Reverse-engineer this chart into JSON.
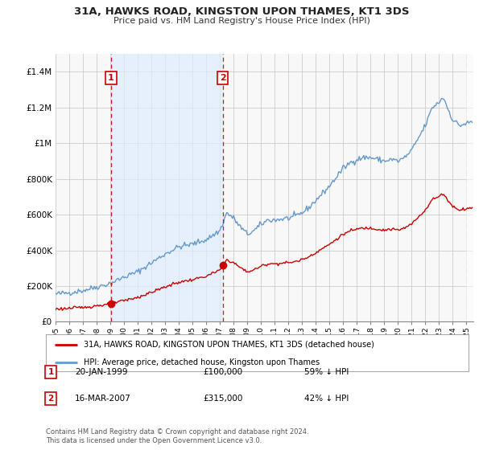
{
  "title": "31A, HAWKS ROAD, KINGSTON UPON THAMES, KT1 3DS",
  "subtitle": "Price paid vs. HM Land Registry's House Price Index (HPI)",
  "footer": "Contains HM Land Registry data © Crown copyright and database right 2024.\nThis data is licensed under the Open Government Licence v3.0.",
  "legend_label_red": "31A, HAWKS ROAD, KINGSTON UPON THAMES, KT1 3DS (detached house)",
  "legend_label_blue": "HPI: Average price, detached house, Kingston upon Thames",
  "annotation1_label": "1",
  "annotation1_date": "20-JAN-1999",
  "annotation1_price": "£100,000",
  "annotation1_hpi": "59% ↓ HPI",
  "annotation2_label": "2",
  "annotation2_date": "16-MAR-2007",
  "annotation2_price": "£315,000",
  "annotation2_hpi": "42% ↓ HPI",
  "sale1_x": 1999.05,
  "sale1_y": 100000,
  "sale2_x": 2007.21,
  "sale2_y": 315000,
  "vline1_x": 1999.05,
  "vline2_x": 2007.21,
  "xlim": [
    1995.0,
    2025.5
  ],
  "ylim": [
    0,
    1500000
  ],
  "yticks": [
    0,
    200000,
    400000,
    600000,
    800000,
    1000000,
    1200000,
    1400000
  ],
  "red_color": "#cc0000",
  "blue_color": "#6699cc",
  "shade_color": "#ddeeff",
  "vline_color": "#cc0000",
  "background_color": "#f5f5f5",
  "plot_bg_color": "#f5f5f5",
  "grid_color": "#cccccc"
}
